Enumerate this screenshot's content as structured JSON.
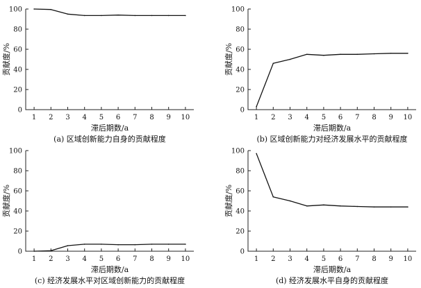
{
  "chart_data": [
    {
      "type": "line",
      "caption": "(a) 区域创新能力自身的贡献程度",
      "xlabel": "滞后期数/a",
      "ylabel": "贡献度/%",
      "x": [
        1,
        2,
        3,
        4,
        5,
        6,
        7,
        8,
        9,
        10
      ],
      "xlim": [
        0.5,
        10.5
      ],
      "ylim": [
        0,
        100
      ],
      "xticks": [
        "1",
        "2",
        "3",
        "4",
        "5",
        "6",
        "7",
        "8",
        "9",
        "10"
      ],
      "yticks": [
        "0",
        "20",
        "40",
        "60",
        "80",
        "100"
      ],
      "series": [
        {
          "values": [
            100,
            99.5,
            95,
            93.5,
            93.5,
            94,
            93.5,
            93.5,
            93.5,
            93.5
          ]
        }
      ],
      "grid": false
    },
    {
      "type": "line",
      "caption": "(b) 区域创新能力对经济发展水平的贡献程度",
      "xlabel": "滞后期数/a",
      "ylabel": "贡献度/%",
      "x": [
        1,
        2,
        3,
        4,
        5,
        6,
        7,
        8,
        9,
        10
      ],
      "xlim": [
        0.5,
        10.5
      ],
      "ylim": [
        0,
        100
      ],
      "xticks": [
        "1",
        "2",
        "3",
        "4",
        "5",
        "6",
        "7",
        "8",
        "9",
        "10"
      ],
      "yticks": [
        "0",
        "20",
        "40",
        "60",
        "80",
        "100"
      ],
      "series": [
        {
          "values": [
            3,
            46,
            50,
            55,
            54,
            55,
            55,
            55.5,
            56,
            56
          ]
        }
      ],
      "grid": false
    },
    {
      "type": "line",
      "caption": "(c) 经济发展水平对区域创新能力的贡献程度",
      "xlabel": "滞后期数/a",
      "ylabel": "贡献度/%",
      "x": [
        1,
        2,
        3,
        4,
        5,
        6,
        7,
        8,
        9,
        10
      ],
      "xlim": [
        0.5,
        10.5
      ],
      "ylim": [
        0,
        100
      ],
      "xticks": [
        "1",
        "2",
        "3",
        "4",
        "5",
        "6",
        "7",
        "8",
        "9",
        "10"
      ],
      "yticks": [
        "0",
        "20",
        "40",
        "60",
        "80",
        "100"
      ],
      "series": [
        {
          "values": [
            0,
            0.5,
            5.5,
            7,
            7,
            6.5,
            6.5,
            7,
            7,
            7
          ]
        }
      ],
      "grid": false
    },
    {
      "type": "line",
      "caption": "(d) 经济发展水平自身的贡献程度",
      "xlabel": "滞后期数/a",
      "ylabel": "贡献度/%",
      "x": [
        1,
        2,
        3,
        4,
        5,
        6,
        7,
        8,
        9,
        10
      ],
      "xlim": [
        0.5,
        10.5
      ],
      "ylim": [
        0,
        100
      ],
      "xticks": [
        "1",
        "2",
        "3",
        "4",
        "5",
        "6",
        "7",
        "8",
        "9",
        "10"
      ],
      "yticks": [
        "0",
        "20",
        "40",
        "60",
        "80",
        "100"
      ],
      "series": [
        {
          "values": [
            97,
            54,
            50,
            45,
            46,
            45,
            44.5,
            44,
            44,
            44
          ]
        }
      ],
      "grid": false
    }
  ]
}
